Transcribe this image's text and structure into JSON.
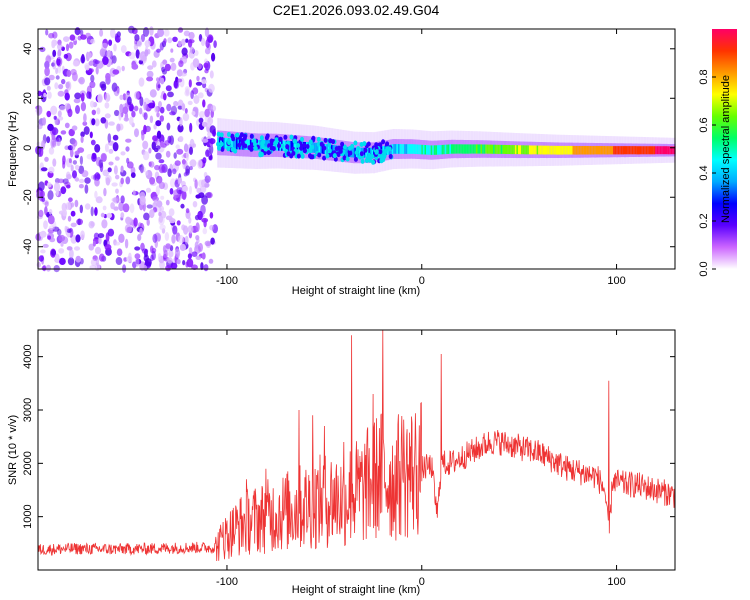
{
  "title": "C2E1.2026.093.02.49.G04",
  "chart_data": [
    {
      "type": "heatmap",
      "xlabel": "Height of straight line (km)",
      "ylabel": "Frequency (Hz)",
      "xlim": [
        -197,
        130
      ],
      "ylim": [
        -49,
        48
      ],
      "xticks": [
        -100,
        0,
        100
      ],
      "yticks": [
        40,
        20,
        0,
        -20,
        -40
      ],
      "colorbar": {
        "label": "Normalized spectral amplitude",
        "range": [
          0,
          1
        ],
        "ticks": [
          "0.0",
          "0.2",
          "0.4",
          "0.6",
          "0.8"
        ],
        "colors": [
          "#ffffff",
          "#cc66ff",
          "#5a00ff",
          "#0000ff",
          "#00aaff",
          "#00ffff",
          "#00ff66",
          "#66ff00",
          "#ffff00",
          "#ff9900",
          "#ff3300",
          "#ff0066"
        ]
      },
      "noise_region_x": [
        -197,
        -106
      ],
      "ridge": [
        {
          "x": -105,
          "f": 2.0
        },
        {
          "x": -95,
          "f": 1.5
        },
        {
          "x": -85,
          "f": 1.0
        },
        {
          "x": -75,
          "f": 1.0
        },
        {
          "x": -65,
          "f": 0.5
        },
        {
          "x": -55,
          "f": 0.0
        },
        {
          "x": -45,
          "f": -1.0
        },
        {
          "x": -35,
          "f": -2.0
        },
        {
          "x": -25,
          "f": -2.0
        },
        {
          "x": -15,
          "f": -0.5
        },
        {
          "x": -5,
          "f": -0.5
        },
        {
          "x": 5,
          "f": -1.0
        },
        {
          "x": 15,
          "f": -0.5
        },
        {
          "x": 30,
          "f": -0.5
        },
        {
          "x": 50,
          "f": -0.8
        },
        {
          "x": 70,
          "f": -1.0
        },
        {
          "x": 90,
          "f": -1.0
        },
        {
          "x": 110,
          "f": -1.0
        },
        {
          "x": 130,
          "f": -1.0
        }
      ]
    },
    {
      "type": "line",
      "xlabel": "Height of straight line (km)",
      "ylabel": "SNR (10 * v/v)",
      "xlim": [
        -197,
        130
      ],
      "ylim": [
        0,
        4500
      ],
      "xticks": [
        -100,
        0,
        100
      ],
      "yticks": [
        1000,
        2000,
        3000,
        4000
      ],
      "color": "#ee3333",
      "series": [
        {
          "x": [
            -197,
            -180,
            -160,
            -140,
            -120,
            -106,
            -100,
            -95,
            -90,
            -85,
            -80,
            -75,
            -70,
            -65,
            -60,
            -55,
            -50,
            -45,
            -40,
            -38,
            -35,
            -30,
            -25,
            -20,
            -15,
            -10,
            -5,
            0,
            5,
            8,
            10,
            15,
            20,
            25,
            30,
            35,
            40,
            45,
            50,
            55,
            60,
            65,
            70,
            75,
            80,
            85,
            90,
            94,
            96,
            98,
            100,
            105,
            110,
            115,
            120,
            125,
            130
          ],
          "y": [
            380,
            400,
            390,
            400,
            420,
            420,
            650,
            800,
            900,
            950,
            1000,
            1050,
            1100,
            1150,
            1200,
            1250,
            1300,
            1350,
            1300,
            1400,
            1450,
            1500,
            1700,
            1800,
            1650,
            1800,
            1850,
            1900,
            1950,
            1000,
            2000,
            2000,
            2100,
            2200,
            2300,
            2400,
            2400,
            2350,
            2300,
            2250,
            2200,
            2100,
            2000,
            1900,
            1850,
            1800,
            1750,
            1500,
            600,
            1700,
            1650,
            1600,
            1600,
            1550,
            1500,
            1450,
            1400
          ]
        }
      ],
      "spikes": [
        {
          "x": -102,
          "y": 900
        },
        {
          "x": -90,
          "y": 1700
        },
        {
          "x": -80,
          "y": 1900
        },
        {
          "x": -63,
          "y": 3000
        },
        {
          "x": -56,
          "y": 2900
        },
        {
          "x": -50,
          "y": 2700
        },
        {
          "x": -40,
          "y": 2400
        },
        {
          "x": -36,
          "y": 4400
        },
        {
          "x": -25,
          "y": 3300
        },
        {
          "x": -20,
          "y": 4500
        },
        {
          "x": -10,
          "y": 2200
        },
        {
          "x": 10,
          "y": 4050
        },
        {
          "x": 96,
          "y": 3550
        }
      ]
    }
  ]
}
